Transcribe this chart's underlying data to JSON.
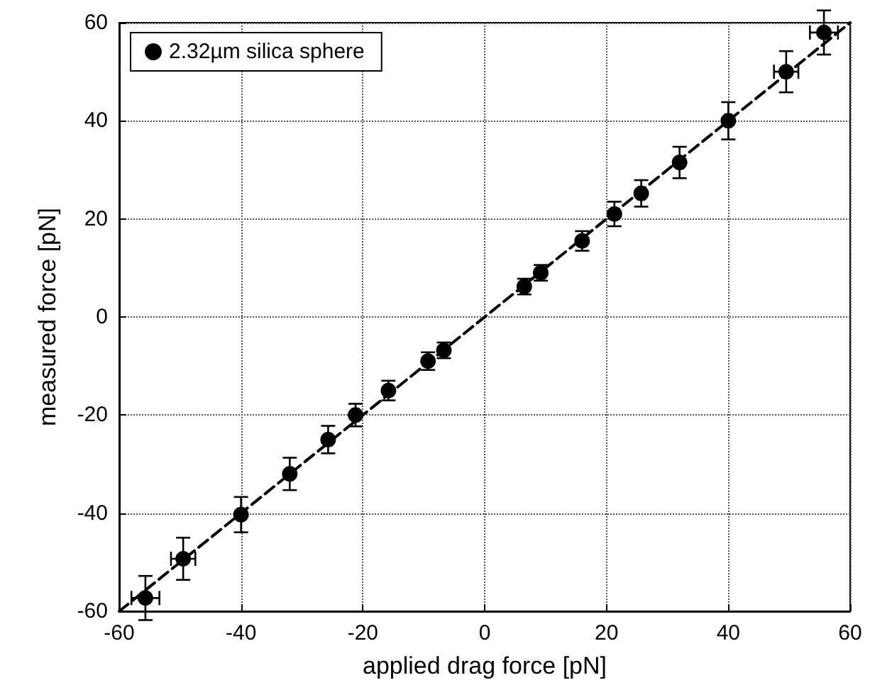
{
  "chart_data": {
    "type": "scatter",
    "xlabel": "applied drag force [pN]",
    "ylabel": "measured force [pN]",
    "xlim": [
      -60,
      60
    ],
    "ylim": [
      -60,
      60
    ],
    "xticks": [
      -60,
      -40,
      -20,
      0,
      20,
      40,
      60
    ],
    "yticks": [
      -60,
      -40,
      -20,
      0,
      20,
      40,
      60
    ],
    "grid": true,
    "legend": "top left",
    "marker": "circle",
    "series": [
      {
        "name": "2.32µm silica sphere",
        "color": "#000000",
        "x": [
          -55.7,
          -49.5,
          -40,
          -32,
          -25.7,
          -21.2,
          -15.8,
          -9.3,
          -6.7,
          6.5,
          9.2,
          16,
          21.3,
          25.7,
          32,
          40,
          49.5,
          55.7
        ],
        "values": [
          -57.3,
          -49.3,
          -40.3,
          -32,
          -25,
          -20,
          -15,
          -9,
          -6.8,
          6.2,
          9,
          15.5,
          21,
          25.2,
          31.5,
          40,
          50,
          58
        ],
        "errors": [
          4.5,
          4.3,
          3.6,
          3.3,
          2.8,
          2.3,
          2,
          1.8,
          1.6,
          1.6,
          1.6,
          2,
          2.5,
          2.7,
          3.2,
          3.8,
          4.2,
          4.5
        ],
        "xerrors": [
          2.3,
          2,
          0.5,
          0.5,
          0.5,
          0.5,
          null,
          null,
          null,
          null,
          null,
          null,
          null,
          0.5,
          0.5,
          0.5,
          2,
          2.3
        ]
      },
      {
        "type": "line",
        "color": "#000000",
        "line_style": "dashed",
        "marker": "none",
        "x": [
          -60,
          60
        ],
        "values": [
          -60,
          60
        ]
      }
    ]
  }
}
